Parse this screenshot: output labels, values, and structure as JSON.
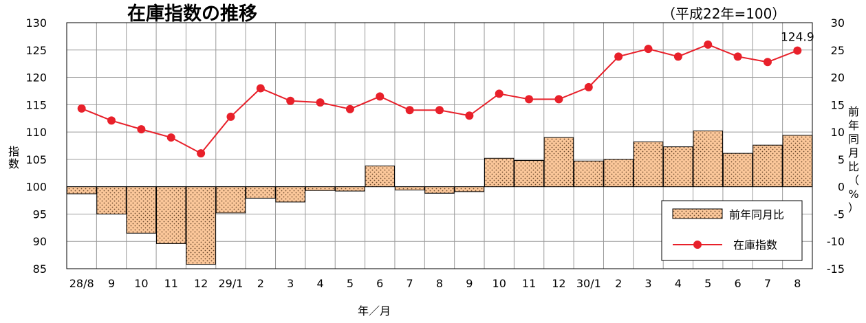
{
  "chart_data": {
    "type": "bar+line",
    "title": "在庫指数の推移",
    "subtitle": "（平成22年=100）",
    "xlabel": "年／月",
    "ylabel_left": "指数",
    "ylabel_right": "前年同月比（%）",
    "categories": [
      "28/8",
      "9",
      "10",
      "11",
      "12",
      "29/1",
      "2",
      "3",
      "4",
      "5",
      "6",
      "7",
      "8",
      "9",
      "10",
      "11",
      "12",
      "30/1",
      "2",
      "3",
      "4",
      "5",
      "6",
      "7",
      "8"
    ],
    "y_left_ticks": [
      "130",
      "125",
      "120",
      "115",
      "110",
      "105",
      "100",
      "95",
      "90",
      "85"
    ],
    "y_right_ticks": [
      "30",
      "25",
      "20",
      "15",
      "10",
      "5",
      "0",
      "-5",
      "-10",
      "-15"
    ],
    "ylim_left": [
      85,
      130
    ],
    "ylim_right": [
      -15,
      30
    ],
    "grid": true,
    "legend_position": "bottom-right",
    "series": [
      {
        "name": "前年同月比",
        "type": "bar",
        "axis": "right",
        "color": "#FBC79A",
        "values": [
          -1.3,
          -5.0,
          -8.5,
          -10.4,
          -14.2,
          -4.8,
          -2.1,
          -2.8,
          -0.7,
          -0.8,
          3.8,
          -0.6,
          -1.2,
          -0.9,
          5.2,
          4.8,
          9.0,
          4.7,
          5.0,
          8.2,
          7.3,
          10.2,
          6.1,
          7.6,
          9.4
        ]
      },
      {
        "name": "在庫指数",
        "type": "line",
        "axis": "left",
        "color": "#E8202A",
        "values": [
          114.3,
          112.1,
          110.5,
          109.0,
          106.1,
          112.8,
          118.0,
          115.7,
          115.4,
          114.2,
          116.5,
          114.0,
          114.0,
          113.0,
          117.0,
          116.0,
          116.0,
          118.2,
          123.8,
          125.2,
          123.8,
          126.0,
          123.8,
          122.8,
          124.9
        ]
      }
    ],
    "annotations": [
      {
        "text": "124.9",
        "category": "8"
      }
    ]
  }
}
